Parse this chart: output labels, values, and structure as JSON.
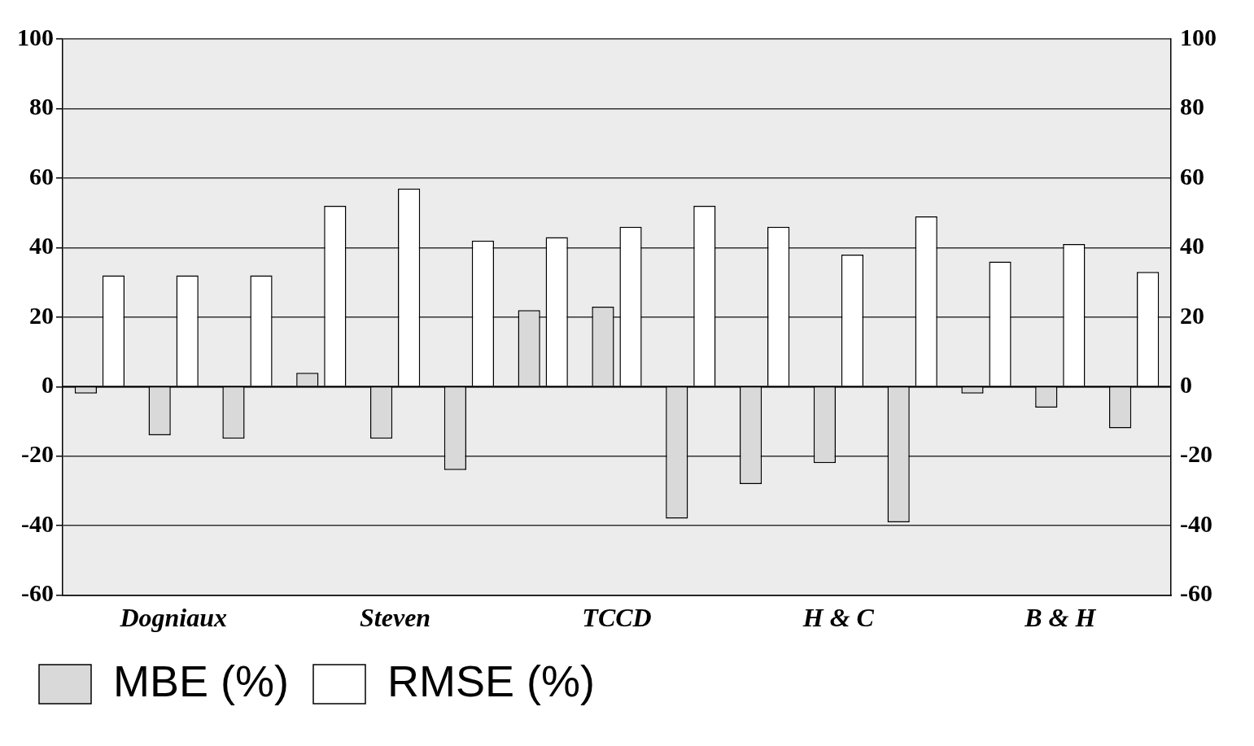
{
  "chart_data": {
    "type": "bar",
    "categories": [
      null,
      "Dogniaux",
      null,
      null,
      "Steven",
      null,
      null,
      "TCCD",
      null,
      null,
      "H & C",
      null,
      null,
      "B & H",
      null
    ],
    "series": [
      {
        "name": "MBE (%)",
        "color": "#d9d9d9",
        "values": [
          -2,
          -14,
          -15,
          4,
          -15,
          -24,
          22,
          23,
          -38,
          -28,
          -22,
          -39,
          -2,
          -6,
          -12
        ]
      },
      {
        "name": "RMSE (%)",
        "color": "#ffffff",
        "values": [
          32,
          32,
          32,
          52,
          57,
          42,
          43,
          46,
          52,
          46,
          38,
          49,
          36,
          41,
          33
        ]
      }
    ],
    "ylim": [
      -60,
      100
    ],
    "yticks": [
      -60,
      -40,
      -20,
      0,
      20,
      40,
      60,
      80,
      100
    ],
    "y2lim": [
      -60,
      100
    ],
    "y2ticks": [
      -60,
      -40,
      -20,
      0,
      20,
      40,
      60,
      80,
      100
    ],
    "grid": "y",
    "legend": "bottom left"
  }
}
